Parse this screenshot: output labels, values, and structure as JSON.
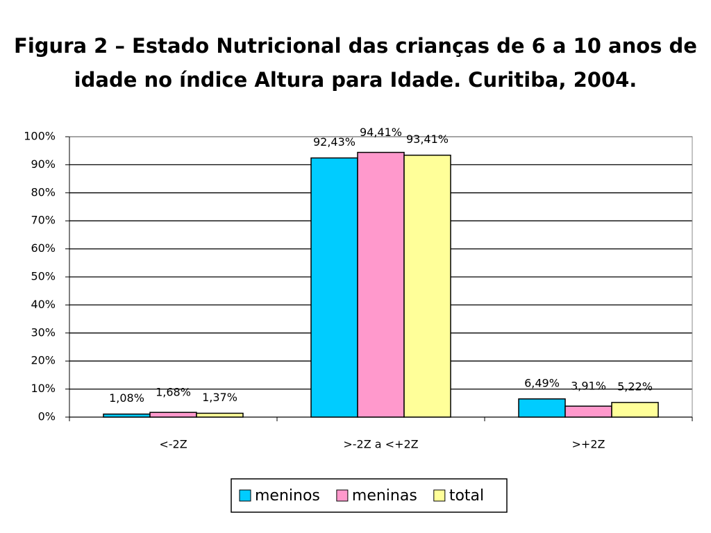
{
  "chart_data": {
    "type": "bar",
    "title": "Figura 2 – Estado Nutricional das crianças de 6 a 10 anos de idade no índice Altura para Idade. Curitiba, 2004.",
    "categories": [
      "<-2Z",
      ">-2Z a <+2Z",
      ">+2Z"
    ],
    "series": [
      {
        "name": "meninos",
        "color": "#00ccff",
        "values": [
          1.08,
          92.43,
          6.49
        ],
        "value_labels": [
          "1,08%",
          "92,43%",
          "6,49%"
        ]
      },
      {
        "name": "meninas",
        "color": "#ff99cc",
        "values": [
          1.68,
          94.41,
          3.91
        ],
        "value_labels": [
          "1,68%",
          "94,41%",
          "3,91%"
        ]
      },
      {
        "name": "total",
        "color": "#ffff99",
        "values": [
          1.37,
          93.41,
          5.22
        ],
        "value_labels": [
          "1,37%",
          "93,41%",
          "5,22%"
        ]
      }
    ],
    "ylim": [
      0,
      100
    ],
    "yticks": [
      {
        "value": 0,
        "label": "0%"
      },
      {
        "value": 10,
        "label": "10%"
      },
      {
        "value": 20,
        "label": "20%"
      },
      {
        "value": 30,
        "label": "30%"
      },
      {
        "value": 40,
        "label": "40%"
      },
      {
        "value": 50,
        "label": "50%"
      },
      {
        "value": 60,
        "label": "60%"
      },
      {
        "value": 70,
        "label": "70%"
      },
      {
        "value": 80,
        "label": "80%"
      },
      {
        "value": 90,
        "label": "90%"
      },
      {
        "value": 100,
        "label": "100%"
      }
    ],
    "grid": true,
    "legend": "bottom"
  }
}
